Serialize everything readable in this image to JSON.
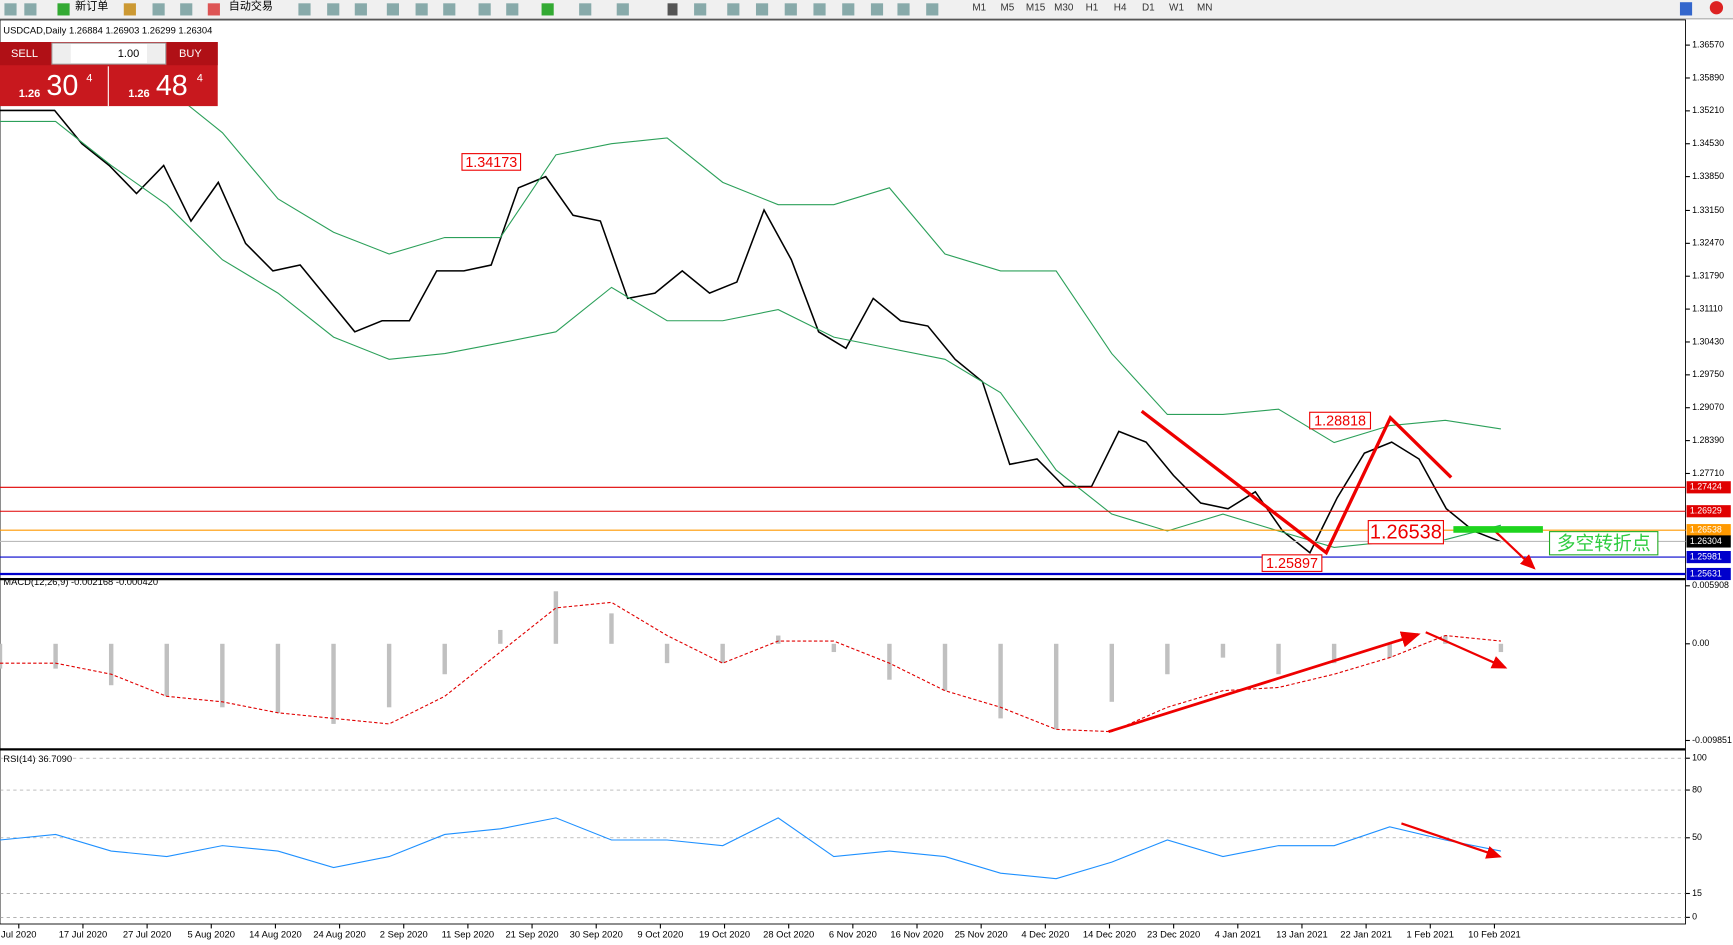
{
  "toolbar": {
    "buttons": [
      "新订单",
      "自动交易"
    ],
    "timeframes": [
      "M1",
      "M5",
      "M15",
      "M30",
      "H1",
      "H4",
      "D1",
      "W1",
      "MN"
    ]
  },
  "trade_panel": {
    "sell": "SELL",
    "buy": "BUY",
    "lots": "1.00",
    "sell_big": "1.26",
    "sell_pips": "30",
    "sell_frac": "4",
    "buy_big": "1.26",
    "buy_pips": "48",
    "buy_frac": "4"
  },
  "time_axis": {
    "labels": [
      "Jul 2020",
      "17 Jul 2020",
      "27 Jul 2020",
      "5 Aug 2020",
      "14 Aug 2020",
      "24 Aug 2020",
      "2 Sep 2020",
      "11 Sep 2020",
      "21 Sep 2020",
      "30 Sep 2020",
      "9 Oct 2020",
      "19 Oct 2020",
      "28 Oct 2020",
      "6 Nov 2020",
      "16 Nov 2020",
      "25 Nov 2020",
      "4 Dec 2020",
      "14 Dec 2020",
      "23 Dec 2020",
      "4 Jan 2021",
      "13 Jan 2021",
      "22 Jan 2021",
      "1 Feb 2021",
      "10 Feb 2021"
    ]
  },
  "chart_data": [
    {
      "type": "line",
      "title": "USDCAD,Daily 1.26884 1.26903 1.26299 1.26304",
      "ylim": [
        1.2557,
        1.37
      ],
      "yticks": [
        {
          "value": 1.3657,
          "label": "1.36570"
        },
        {
          "value": 1.3589,
          "label": "1.35890"
        },
        {
          "value": 1.3521,
          "label": "1.35210"
        },
        {
          "value": 1.3453,
          "label": "1.34530"
        },
        {
          "value": 1.3385,
          "label": "1.33850"
        },
        {
          "value": 1.3315,
          "label": "1.33150"
        },
        {
          "value": 1.3247,
          "label": "1.32470"
        },
        {
          "value": 1.3179,
          "label": "1.31790"
        },
        {
          "value": 1.3111,
          "label": "1.31110"
        },
        {
          "value": 1.3043,
          "label": "1.30430"
        },
        {
          "value": 1.2975,
          "label": "1.29750"
        },
        {
          "value": 1.2907,
          "label": "1.29070"
        },
        {
          "value": 1.2839,
          "label": "1.28390"
        },
        {
          "value": 1.2771,
          "label": "1.27710"
        }
      ],
      "series": [
        {
          "color": "#000000",
          "values": [
            1.3522,
            1.3522,
            1.3522,
            1.3453,
            1.3408,
            1.335,
            1.3408,
            1.3293,
            1.3373,
            1.3247,
            1.319,
            1.3202,
            1.3133,
            1.3064,
            1.3087,
            1.3087,
            1.319,
            1.319,
            1.3202,
            1.3362,
            1.3385,
            1.3305,
            1.3293,
            1.3133,
            1.3144,
            1.319,
            1.3144,
            1.3167,
            1.3316,
            1.3213,
            1.3064,
            1.303,
            1.3133,
            1.3087,
            1.3076,
            1.3007,
            1.2961,
            1.279,
            1.2801,
            1.2744,
            1.2744,
            1.2858,
            1.2836,
            1.2767,
            1.271,
            1.2698,
            1.2733,
            1.2652,
            1.2607,
            1.2721,
            1.2813,
            1.2836,
            1.2801,
            1.2698,
            1.2652,
            1.263
          ]
        },
        {
          "color": "#2ca05a",
          "values": [
            1.3659,
            1.3648,
            1.3625,
            1.3568,
            1.3476,
            1.3339,
            1.327,
            1.3225,
            1.3259,
            1.3259,
            1.343,
            1.3453,
            1.3465,
            1.3373,
            1.3327,
            1.3327,
            1.3362,
            1.3225,
            1.319,
            1.319,
            1.3019,
            1.2893,
            1.2893,
            1.2904,
            1.2835,
            1.287,
            1.2881,
            1.2863
          ]
        },
        {
          "color": "#2ca05a",
          "values": [
            1.3499,
            1.3499,
            1.3408,
            1.3327,
            1.3213,
            1.3144,
            1.3053,
            1.3007,
            1.3019,
            1.3041,
            1.3064,
            1.3156,
            1.3087,
            1.3087,
            1.311,
            1.3053,
            1.303,
            1.3007,
            1.2938,
            1.2778,
            1.2687,
            1.2652,
            1.2687,
            1.2652,
            1.2618,
            1.263,
            1.2634,
            1.2664
          ]
        }
      ],
      "levels": [
        {
          "value": 1.27424,
          "color": "#e00000"
        },
        {
          "value": 1.26929,
          "color": "#e00000"
        },
        {
          "value": 1.26538,
          "color": "#ff9900"
        },
        {
          "value": 1.26304,
          "color": "#000000"
        },
        {
          "value": 1.25981,
          "color": "#0000cc"
        },
        {
          "value": 1.25631,
          "color": "#0000cc"
        }
      ],
      "annotations": [
        "1.34173",
        "1.28818",
        "1.26538",
        "1.25897",
        "多空转折点"
      ]
    },
    {
      "type": "bar",
      "title": "MACD(12,26,9) -0.002168 -0.000420",
      "ylim": [
        -0.01053,
        0.00636
      ],
      "yticks": [
        0.005908,
        {
          "value": 0,
          "label": "0.00"
        },
        -0.009851
      ],
      "series": [
        {
          "type": "bar",
          "color": "#c0c0c0",
          "values": [
            -0.00253,
            -0.00253,
            -0.00422,
            -0.00535,
            -0.00647,
            -0.00703,
            -0.00816,
            -0.00647,
            -0.0031,
            0.00141,
            0.00535,
            0.0031,
            -0.00197,
            -0.00197,
            0.00084,
            -0.00084,
            -0.00366,
            -0.00478,
            -0.0076,
            -0.00872,
            -0.00591,
            -0.0031,
            -0.00141,
            -0.0031,
            -0.00197,
            -0.00141,
            0.00084,
            -0.00084
          ]
        },
        {
          "type": "line",
          "color": "#e00000",
          "values": [
            -0.00197,
            -0.00197,
            -0.0031,
            -0.00535,
            -0.00591,
            -0.00703,
            -0.0076,
            -0.00816,
            -0.00535,
            -0.00084,
            0.00366,
            0.00422,
            0.00084,
            -0.00197,
            0.00028,
            0.00028,
            -0.00197,
            -0.00478,
            -0.00647,
            -0.00872,
            -0.00895,
            -0.00647,
            -0.00478,
            -0.00445,
            -0.0031,
            -0.00141,
            0.00084,
            0.00028
          ]
        }
      ]
    },
    {
      "type": "line",
      "title": "RSI(14) 36.7090",
      "ylim": [
        0,
        100
      ],
      "yticks": [
        100,
        80,
        50,
        15,
        0
      ],
      "grid": true,
      "series": [
        {
          "color": "#1e90ff",
          "values": [
            48.6,
            52.1,
            41.7,
            38.2,
            45.1,
            41.7,
            31.3,
            38.2,
            52.1,
            55.6,
            62.5,
            48.6,
            48.6,
            45.1,
            62.5,
            38.2,
            41.7,
            38.2,
            27.8,
            24.3,
            34.7,
            48.6,
            38.2,
            45.1,
            45.1,
            56.9,
            48.6,
            41.7
          ]
        }
      ]
    }
  ]
}
